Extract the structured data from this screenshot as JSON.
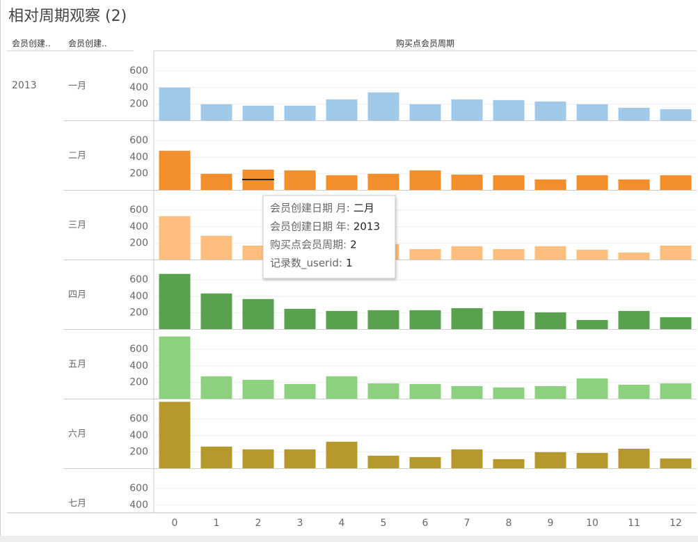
{
  "chart_data": {
    "type": "bar",
    "title": "相对周期观察 (2)",
    "row_headers": [
      "会员创建..",
      "会员创建.."
    ],
    "x_title": "购买点会员周期",
    "year": "2013",
    "categories": [
      "0",
      "1",
      "2",
      "3",
      "4",
      "5",
      "6",
      "7",
      "8",
      "9",
      "10",
      "11",
      "12"
    ],
    "ylim": [
      0,
      830
    ],
    "yticks": [
      200,
      400,
      600
    ],
    "grid": true,
    "series": [
      {
        "name": "一月",
        "color": "#a0c8e8",
        "values": [
          400,
          196,
          179,
          179,
          255,
          340,
          196,
          255,
          247,
          230,
          196,
          153,
          136
        ]
      },
      {
        "name": "二月",
        "color": "#f28e2b",
        "values": [
          477,
          196,
          247,
          238,
          179,
          196,
          238,
          187,
          179,
          128,
          179,
          128,
          179
        ]
      },
      {
        "name": "三月",
        "color": "#ffbe7d",
        "values": [
          528,
          289,
          170,
          150,
          160,
          187,
          128,
          162,
          128,
          162,
          119,
          85,
          170
        ]
      },
      {
        "name": "四月",
        "color": "#59a14f",
        "values": [
          672,
          434,
          366,
          247,
          221,
          230,
          230,
          255,
          221,
          204,
          111,
          221,
          145
        ]
      },
      {
        "name": "五月",
        "color": "#8cd17d",
        "values": [
          757,
          272,
          230,
          179,
          272,
          187,
          179,
          153,
          136,
          153,
          247,
          170,
          187
        ]
      },
      {
        "name": "六月",
        "color": "#b6992d",
        "values": [
          809,
          264,
          230,
          230,
          323,
          153,
          136,
          230,
          111,
          196,
          187,
          238,
          119
        ]
      },
      {
        "name": "七月",
        "color": "#499894",
        "values": [
          null,
          null,
          null,
          null,
          null,
          null,
          null,
          null,
          null,
          null,
          null,
          null,
          null
        ]
      }
    ],
    "tooltip": [
      {
        "label": "会员创建日期 月:",
        "value": "二月"
      },
      {
        "label": "会员创建日期 年:",
        "value": "2013"
      },
      {
        "label": "购买点会员周期:",
        "value": "2"
      },
      {
        "label": "记录数_userid:",
        "value": "1"
      }
    ]
  }
}
